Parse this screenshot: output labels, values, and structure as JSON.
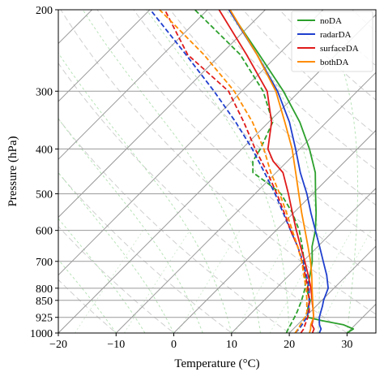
{
  "chart_data": {
    "type": "line",
    "chart_kind": "skew-T log-p sounding",
    "xlabel": "Temperature (°C)",
    "ylabel": "Pressure (hPa)",
    "xlim": [
      -20,
      35
    ],
    "ylim": [
      1000,
      200
    ],
    "y_scale": "log",
    "x_ticks": [
      -20,
      -10,
      0,
      10,
      20,
      30
    ],
    "x_tick_labels": [
      "−20",
      "−10",
      "0",
      "10",
      "20",
      "30"
    ],
    "y_ticks": [
      200,
      300,
      400,
      500,
      600,
      700,
      800,
      850,
      925,
      1000
    ],
    "y_tick_labels": [
      "200",
      "300",
      "400",
      "500",
      "600",
      "700",
      "800",
      "850",
      "925",
      "1000"
    ],
    "grid": true,
    "background_lines": [
      "isobars",
      "skewed isotherms",
      "dry adiabats",
      "moist adiabats",
      "mixing ratio lines"
    ],
    "legend_position": "top-right",
    "legend_entries": [
      "noDA",
      "radarDA",
      "surfaceDA",
      "bothDA"
    ],
    "series": [
      {
        "name": "noDA",
        "color": "#2ca02c",
        "temperature": {
          "p": [
            1000,
            980,
            960,
            940,
            925,
            900,
            880,
            860,
            850,
            820,
            800,
            750,
            700,
            650,
            600,
            550,
            500,
            450,
            400,
            350,
            300,
            250,
            200
          ],
          "t": [
            30.0,
            30.4,
            28.0,
            23.5,
            20.5,
            19.5,
            18.8,
            18.3,
            18.0,
            16.3,
            15.4,
            13.6,
            11.6,
            9.0,
            6.8,
            3.9,
            0.5,
            -3.2,
            -8.3,
            -14.6,
            -22.8,
            -33.3,
            -46.3
          ]
        },
        "dewpoint": {
          "p": [
            1000,
            985,
            960,
            925,
            900,
            850,
            800,
            750,
            700,
            650,
            600,
            550,
            500,
            475,
            450,
            425,
            400,
            350,
            300,
            250,
            200
          ],
          "t": [
            19.5,
            19.2,
            18.8,
            18.2,
            17.7,
            16.5,
            15.0,
            12.8,
            10.2,
            7.3,
            4.0,
            -0.2,
            -5.5,
            -9.5,
            -14.0,
            -16.0,
            -16.8,
            -19.3,
            -26.3,
            -36.6,
            -52.2
          ]
        }
      },
      {
        "name": "radarDA",
        "color": "#1f3fce",
        "temperature": {
          "p": [
            1000,
            980,
            960,
            925,
            900,
            875,
            850,
            800,
            750,
            700,
            650,
            600,
            550,
            500,
            450,
            400,
            350,
            300,
            250,
            200
          ],
          "t": [
            25.2,
            24.8,
            23.8,
            22.5,
            21.8,
            21.1,
            20.3,
            19.0,
            16.5,
            13.5,
            10.3,
            6.8,
            3.0,
            -1.0,
            -5.8,
            -10.7,
            -16.4,
            -23.8,
            -33.7,
            -46.3
          ]
        },
        "dewpoint": {
          "p": [
            1000,
            980,
            960,
            925,
            900,
            850,
            800,
            750,
            700,
            650,
            600,
            550,
            500,
            450,
            400,
            350,
            300,
            250,
            200
          ],
          "t": [
            21.0,
            21.0,
            20.8,
            20.3,
            19.6,
            17.8,
            15.7,
            13.0,
            10.0,
            6.5,
            2.5,
            -1.8,
            -6.5,
            -12.0,
            -18.2,
            -25.7,
            -34.8,
            -46.0,
            -59.9
          ]
        }
      },
      {
        "name": "surfaceDA",
        "color": "#e01a1a",
        "temperature": {
          "p": [
            1000,
            980,
            960,
            925,
            900,
            850,
            800,
            750,
            700,
            650,
            600,
            550,
            500,
            450,
            425,
            400,
            350,
            300,
            250,
            200
          ],
          "t": [
            24.0,
            23.6,
            22.5,
            21.5,
            20.5,
            18.3,
            16.0,
            13.3,
            10.3,
            7.0,
            3.5,
            -0.2,
            -4.2,
            -8.8,
            -12.5,
            -15.5,
            -19.5,
            -25.6,
            -35.5,
            -48.0
          ]
        },
        "dewpoint": {
          "p": [
            1000,
            980,
            960,
            925,
            900,
            850,
            800,
            750,
            700,
            650,
            600,
            550,
            500,
            450,
            400,
            350,
            300,
            250,
            200
          ],
          "t": [
            22.0,
            21.8,
            21.3,
            20.5,
            19.8,
            17.8,
            15.5,
            12.8,
            9.8,
            6.5,
            2.5,
            -1.6,
            -6.2,
            -11.5,
            -17.7,
            -24.3,
            -32.3,
            -45.7,
            -57.4
          ]
        }
      },
      {
        "name": "bothDA",
        "color": "#ff8c00",
        "temperature": {
          "p": [
            1000,
            980,
            960,
            925,
            900,
            850,
            800,
            750,
            700,
            650,
            600,
            550,
            500,
            450,
            400,
            350,
            300,
            250,
            200
          ],
          "t": [
            23.5,
            23.0,
            22.3,
            21.5,
            20.5,
            18.4,
            16.2,
            13.9,
            11.3,
            8.3,
            5.0,
            1.4,
            -2.4,
            -6.6,
            -11.3,
            -17.2,
            -24.1,
            -33.7,
            -46.1
          ]
        },
        "dewpoint": {
          "p": [
            1000,
            980,
            960,
            925,
            900,
            850,
            800,
            750,
            700,
            650,
            600,
            550,
            500,
            450,
            400,
            350,
            300,
            250,
            200
          ],
          "t": [
            21.0,
            20.8,
            20.5,
            20.0,
            19.4,
            17.4,
            15.2,
            12.5,
            9.8,
            6.5,
            2.8,
            -1.2,
            -5.7,
            -10.9,
            -16.2,
            -22.8,
            -31.3,
            -42.9,
            -58.3
          ]
        }
      }
    ]
  }
}
